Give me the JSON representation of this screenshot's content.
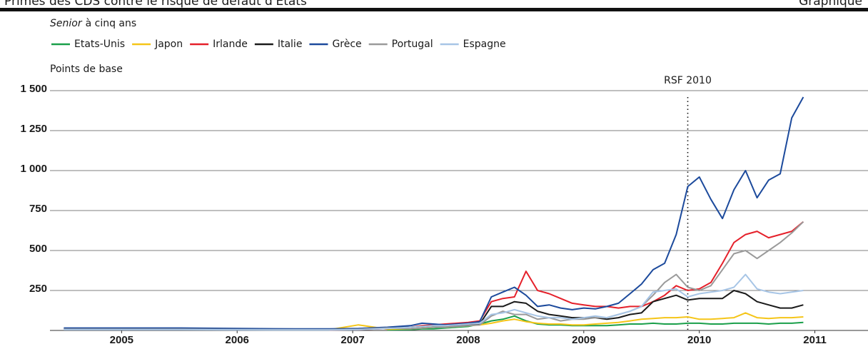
{
  "chart_data": {
    "type": "line",
    "title": "Primes des CDS contre le risque de défaut d'États",
    "label": "Graphique",
    "subtitle": [
      "Senior",
      "à cinq ans"
    ],
    "y_label": "Points de base",
    "annotation": {
      "text": "RSF 2010",
      "x": 2010.4
    },
    "x": [
      2005.0,
      2005.5,
      2006.0,
      2006.5,
      2007.0,
      2007.3,
      2007.55,
      2007.8,
      2008.0,
      2008.1,
      2008.2,
      2008.3,
      2008.4,
      2008.5,
      2008.6,
      2008.7,
      2008.8,
      2008.9,
      2009.0,
      2009.1,
      2009.2,
      2009.3,
      2009.4,
      2009.5,
      2009.6,
      2009.7,
      2009.8,
      2009.9,
      2010.0,
      2010.1,
      2010.2,
      2010.3,
      2010.4,
      2010.5,
      2010.6,
      2010.7,
      2010.8,
      2010.9,
      2011.0,
      2011.1,
      2011.2,
      2011.3,
      2011.4
    ],
    "series": [
      {
        "name": "Etats-Unis",
        "color": "#1a9f4a",
        "values": [
          null,
          null,
          null,
          null,
          null,
          null,
          null,
          3,
          5,
          10,
          10,
          15,
          20,
          25,
          40,
          60,
          70,
          90,
          60,
          40,
          35,
          35,
          30,
          30,
          30,
          30,
          35,
          40,
          40,
          45,
          40,
          40,
          45,
          45,
          40,
          40,
          45,
          45,
          45,
          40,
          45,
          45,
          50
        ]
      },
      {
        "name": "Japon",
        "color": "#f5c518",
        "values": [
          null,
          null,
          null,
          null,
          null,
          5,
          35,
          8,
          10,
          15,
          20,
          20,
          25,
          30,
          35,
          45,
          60,
          70,
          55,
          45,
          40,
          40,
          35,
          35,
          40,
          45,
          50,
          60,
          70,
          75,
          80,
          80,
          85,
          70,
          70,
          75,
          80,
          110,
          80,
          75,
          80,
          80,
          85
        ]
      },
      {
        "name": "Irlande",
        "color": "#e5202a",
        "values": [
          null,
          null,
          null,
          null,
          null,
          3,
          5,
          12,
          20,
          30,
          35,
          40,
          45,
          50,
          60,
          180,
          200,
          210,
          370,
          250,
          230,
          200,
          170,
          160,
          150,
          150,
          140,
          150,
          150,
          180,
          220,
          280,
          250,
          260,
          300,
          420,
          550,
          600,
          620,
          580,
          600,
          620,
          680
        ]
      },
      {
        "name": "Italie",
        "color": "#1a1a1a",
        "values": [
          12,
          13,
          12,
          10,
          8,
          8,
          10,
          18,
          20,
          25,
          30,
          30,
          30,
          35,
          40,
          150,
          150,
          180,
          170,
          120,
          100,
          90,
          80,
          80,
          80,
          70,
          80,
          100,
          110,
          180,
          200,
          220,
          190,
          200,
          200,
          200,
          250,
          230,
          180,
          160,
          140,
          140,
          160
        ]
      },
      {
        "name": "Grèce",
        "color": "#1c4a9c",
        "values": [
          15,
          15,
          15,
          12,
          10,
          10,
          12,
          20,
          30,
          45,
          40,
          35,
          40,
          45,
          55,
          210,
          240,
          270,
          220,
          150,
          160,
          140,
          130,
          140,
          135,
          150,
          170,
          230,
          290,
          380,
          420,
          600,
          900,
          960,
          820,
          700,
          880,
          1000,
          830,
          940,
          980,
          1330,
          1460
        ]
      },
      {
        "name": "Portugal",
        "color": "#9a9a9a",
        "values": [
          8,
          8,
          8,
          6,
          5,
          5,
          7,
          15,
          10,
          15,
          20,
          20,
          25,
          30,
          35,
          90,
          120,
          100,
          100,
          70,
          80,
          60,
          70,
          70,
          80,
          80,
          100,
          120,
          150,
          220,
          300,
          350,
          270,
          250,
          280,
          380,
          480,
          500,
          450,
          500,
          550,
          610,
          680
        ]
      },
      {
        "name": "Espagne",
        "color": "#a7c5e6",
        "values": [
          5,
          5,
          5,
          4,
          3,
          3,
          5,
          12,
          20,
          25,
          30,
          30,
          35,
          40,
          45,
          100,
          110,
          130,
          110,
          90,
          80,
          80,
          70,
          80,
          90,
          80,
          100,
          120,
          150,
          240,
          250,
          260,
          210,
          230,
          240,
          250,
          270,
          350,
          260,
          240,
          230,
          240,
          250
        ]
      }
    ],
    "xlim": [
      2004.88,
      2011.96
    ],
    "xticks": [
      {
        "value": 2005.5,
        "label": "2005"
      },
      {
        "value": 2006.5,
        "label": "2006"
      },
      {
        "value": 2007.5,
        "label": "2007"
      },
      {
        "value": 2008.5,
        "label": "2008"
      },
      {
        "value": 2009.5,
        "label": "2009"
      },
      {
        "value": 2010.5,
        "label": "2010"
      },
      {
        "value": 2011.5,
        "label": "2011"
      }
    ],
    "ylim": [
      0,
      1500
    ],
    "yticks": [
      250,
      500,
      750,
      {
        "value": 1000,
        "label": "1 000"
      },
      {
        "value": 1250,
        "label": "1 250"
      },
      {
        "value": 1500,
        "label": "1 500"
      }
    ],
    "grid": true
  }
}
